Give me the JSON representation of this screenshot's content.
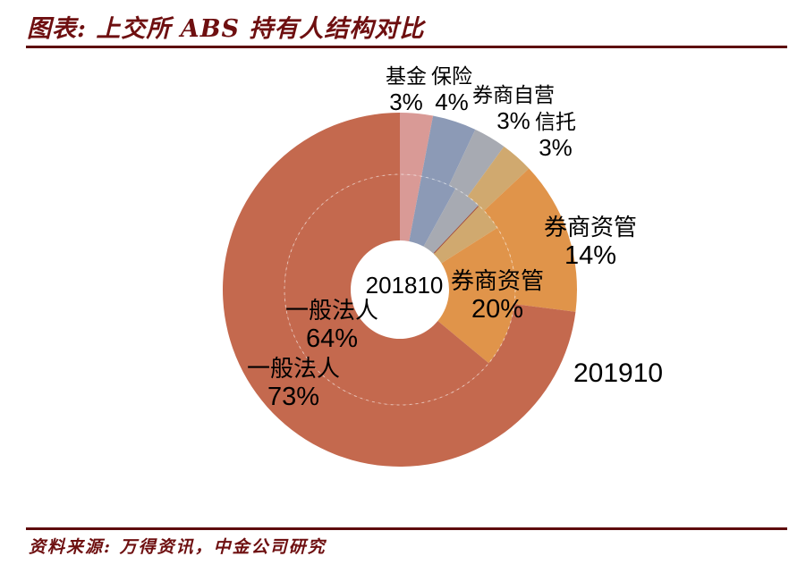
{
  "header": {
    "title": "图表: 上交所 ABS 持有人结构对比"
  },
  "footer": {
    "source": "资料来源: 万得资讯，中金公司研究"
  },
  "chart_data": {
    "type": "pie",
    "subtype": "nested-donut",
    "title": "上交所 ABS 持有人结构对比",
    "categories": [
      "基金",
      "保险",
      "券商自营",
      "信托",
      "券商资管",
      "一般法人"
    ],
    "colors": [
      "#D99A96",
      "#8C9AB6",
      "#A7AAB2",
      "#D0A96F",
      "#E0944A",
      "#C4694E"
    ],
    "series": [
      {
        "name": "201810",
        "ring": "inner",
        "values": [
          3,
          5,
          4,
          4,
          20,
          64
        ]
      },
      {
        "name": "201910",
        "ring": "outer",
        "values": [
          3,
          4,
          3,
          3,
          14,
          73
        ]
      }
    ],
    "start_angle_deg": 0,
    "direction": "clockwise",
    "legend": "none",
    "visible_value_labels": {
      "outer_201910": {
        "基金": "3%",
        "保险": "4%",
        "券商自营": "3%",
        "信托": "3%",
        "券商资管": "14%",
        "一般法人": "73%"
      },
      "inner_201810": {
        "券商资管": "20%",
        "一般法人": "64%"
      }
    }
  },
  "labels": {
    "fund": {
      "name": "基金",
      "pct": "3%"
    },
    "insurance": {
      "name": "保险",
      "pct": "4%"
    },
    "broker_prop": {
      "name": "券商自营",
      "pct": "3%"
    },
    "trust": {
      "name": "信托",
      "pct": "3%"
    },
    "broker_am_outer": {
      "name": "券商资管",
      "pct": "14%"
    },
    "broker_am_inner": {
      "name": "券商资管",
      "pct": "20%"
    },
    "general_inner": {
      "name": "一般法人",
      "pct": "64%"
    },
    "general_outer": {
      "name": "一般法人",
      "pct": "73%"
    },
    "inner_series": "201810",
    "outer_series": "201910"
  },
  "theme": {
    "accent_dark_red": "#6E0F10",
    "rule_color": "#5E0B0C",
    "label_color": "#000000",
    "background": "#FFFFFF"
  }
}
